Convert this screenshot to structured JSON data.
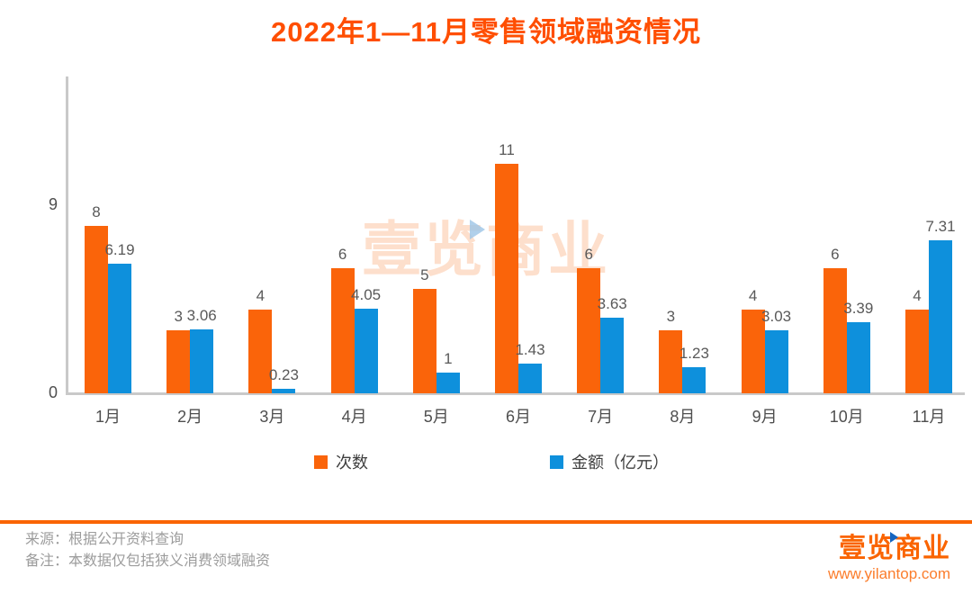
{
  "title": "2022年1—11月零售领域融资情况",
  "chart_data": {
    "type": "bar",
    "categories": [
      "1月",
      "2月",
      "3月",
      "4月",
      "5月",
      "6月",
      "7月",
      "8月",
      "9月",
      "10月",
      "11月"
    ],
    "series": [
      {
        "name": "次数",
        "color": "#fa640a",
        "values": [
          8,
          3,
          4,
          6,
          5,
          11,
          6,
          3,
          4,
          6,
          4
        ]
      },
      {
        "name": "金额（亿元）",
        "color": "#0e90dc",
        "values": [
          6.19,
          3.06,
          0.23,
          4.05,
          1,
          1.43,
          3.63,
          1.23,
          3.03,
          3.39,
          7.31
        ]
      }
    ],
    "ylabel": "",
    "xlabel": "",
    "ylim": [
      0,
      15
    ],
    "yticks": [
      9,
      0
    ],
    "grid": false,
    "legend_position": "bottom",
    "value_labels": true
  },
  "watermark": {
    "text": "壹览商业"
  },
  "footer": {
    "source": "来源：根据公开资料查询",
    "note": "备注：本数据仅包括狭义消费领域融资",
    "logo_text": "壹览商业",
    "website": "www.yilantop.com"
  },
  "colors": {
    "title": "#ff4e00",
    "count_series": "#fa640a",
    "amount_series": "#0e90dc",
    "watermark": "#fa6408",
    "divider": "#fa6400",
    "logo": "#fa6400",
    "website": "#fb7d2c",
    "axis": "#c9c9c9",
    "label_text": "#595959"
  }
}
